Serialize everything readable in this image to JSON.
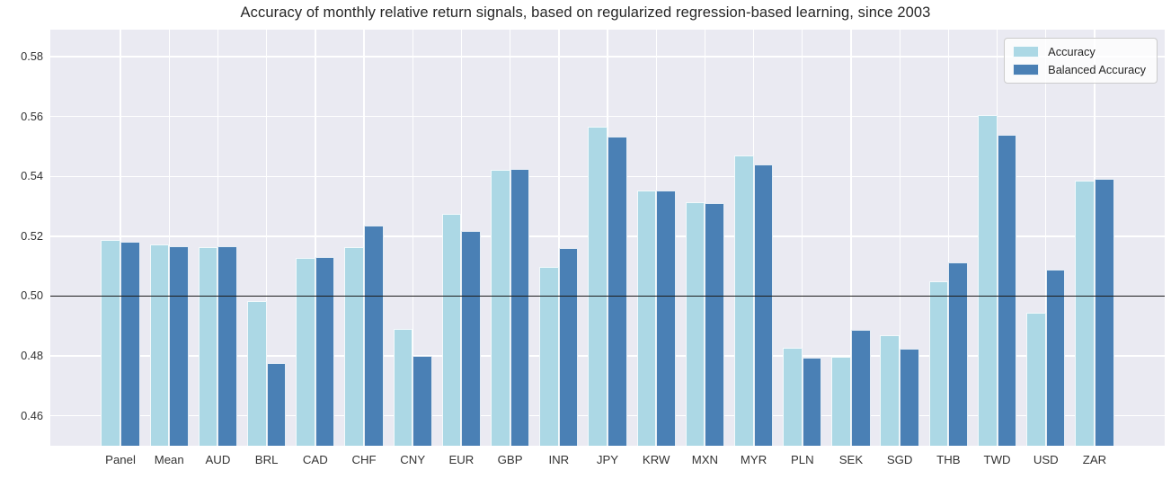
{
  "chart_data": {
    "type": "bar",
    "title": "Accuracy of monthly relative return signals, based on regularized regression-based learning, since 2003",
    "categories": [
      "Panel",
      "Mean",
      "AUD",
      "BRL",
      "CAD",
      "CHF",
      "CNY",
      "EUR",
      "GBP",
      "INR",
      "JPY",
      "KRW",
      "MXN",
      "MYR",
      "PLN",
      "SEK",
      "SGD",
      "THB",
      "TWD",
      "USD",
      "ZAR"
    ],
    "series": [
      {
        "name": "Accuracy",
        "color": "#acd8e5",
        "values": [
          0.5187,
          0.5173,
          0.5163,
          0.4983,
          0.5128,
          0.5164,
          0.4891,
          0.5275,
          0.5423,
          0.5098,
          0.5567,
          0.5354,
          0.5315,
          0.5471,
          0.4826,
          0.4796,
          0.4869,
          0.5048,
          0.5606,
          0.4944,
          0.5385
        ]
      },
      {
        "name": "Balanced Accuracy",
        "color": "#4a80b5",
        "values": [
          0.5181,
          0.5167,
          0.5166,
          0.4776,
          0.513,
          0.5236,
          0.4799,
          0.5218,
          0.5426,
          0.5161,
          0.5532,
          0.5353,
          0.5312,
          0.5439,
          0.4793,
          0.4887,
          0.4824,
          0.5111,
          0.5538,
          0.5089,
          0.5392
        ]
      }
    ],
    "xlabel": "",
    "ylabel": "",
    "ylim": [
      0.45,
      0.589
    ],
    "xlim": [
      -1.44,
      21.44
    ],
    "yticks": [
      0.46,
      0.48,
      0.5,
      0.52,
      0.54,
      0.56,
      0.58
    ],
    "ytick_labels": [
      "0.46",
      "0.48",
      "0.50",
      "0.52",
      "0.54",
      "0.56",
      "0.58"
    ],
    "reference_line": 0.5,
    "grid": true,
    "legend_position": "upper right",
    "plot_background": "#eaeaf2",
    "grid_color": "#ffffff",
    "reference_line_color": "#1c1c1c"
  }
}
